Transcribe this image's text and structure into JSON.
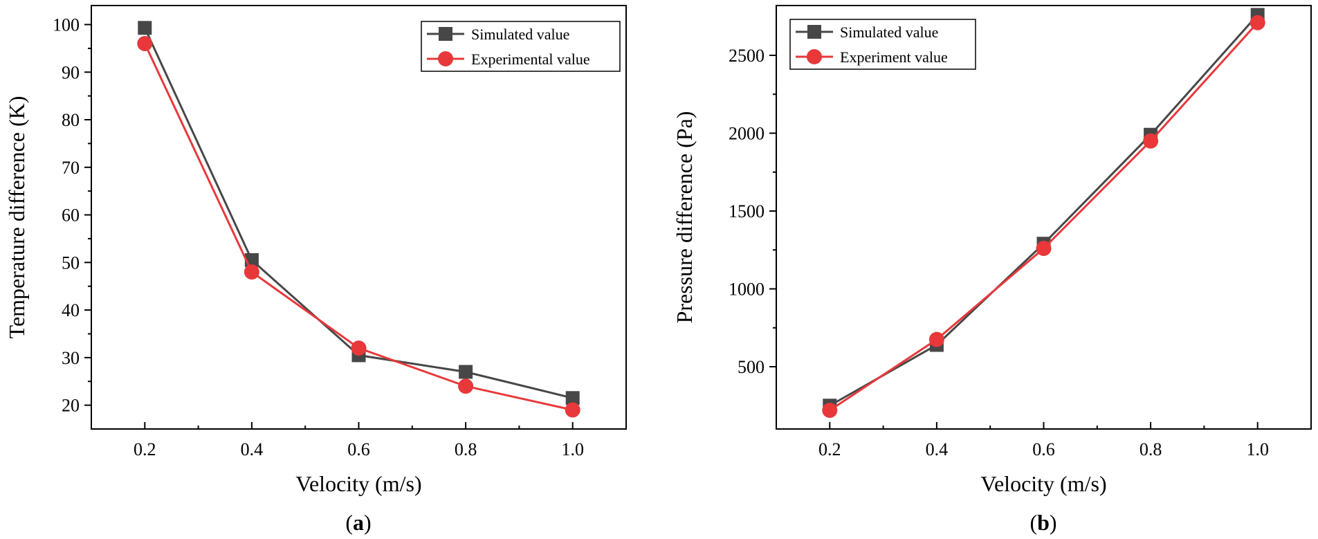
{
  "chart_data": [
    {
      "type": "line",
      "panel_label": "a",
      "xlabel": "Velocity (m/s)",
      "ylabel": "Temperature difference (K)",
      "x": [
        0.2,
        0.4,
        0.6,
        0.8,
        1.0
      ],
      "xlim": [
        0.1,
        1.1
      ],
      "ylim": [
        15,
        104
      ],
      "xticks": [
        0.2,
        0.4,
        0.6,
        0.8,
        1.0
      ],
      "xtick_labels": [
        "0.2",
        "0.4",
        "0.6",
        "0.8",
        "1.0"
      ],
      "yticks": [
        20,
        30,
        40,
        50,
        60,
        70,
        80,
        90,
        100
      ],
      "ytick_labels": [
        "20",
        "30",
        "40",
        "50",
        "60",
        "70",
        "80",
        "90",
        "100"
      ],
      "grid": false,
      "legend_position": "top-right",
      "series": [
        {
          "name": "Simulated value",
          "values": [
            99.3,
            50.5,
            30.5,
            27.0,
            21.5
          ],
          "color": "#474747",
          "marker": "square"
        },
        {
          "name": "Experimental value",
          "values": [
            96.0,
            48.0,
            32.0,
            24.0,
            19.0
          ],
          "color": "#e8383a",
          "marker": "circle"
        }
      ]
    },
    {
      "type": "line",
      "panel_label": "b",
      "xlabel": "Velocity (m/s)",
      "ylabel": "Pressure difference (Pa)",
      "x": [
        0.2,
        0.4,
        0.6,
        0.8,
        1.0
      ],
      "xlim": [
        0.1,
        1.1
      ],
      "ylim": [
        100,
        2820
      ],
      "xticks": [
        0.2,
        0.4,
        0.6,
        0.8,
        1.0
      ],
      "xtick_labels": [
        "0.2",
        "0.4",
        "0.6",
        "0.8",
        "1.0"
      ],
      "yticks": [
        500,
        1000,
        1500,
        2000,
        2500
      ],
      "ytick_labels": [
        "500",
        "1000",
        "1500",
        "2000",
        "2500"
      ],
      "grid": false,
      "legend_position": "top-left",
      "series": [
        {
          "name": "Simulated value",
          "values": [
            250,
            640,
            1290,
            1990,
            2760
          ],
          "color": "#474747",
          "marker": "square"
        },
        {
          "name": "Experiment value",
          "values": [
            220,
            675,
            1260,
            1950,
            2710
          ],
          "color": "#e8383a",
          "marker": "circle"
        }
      ]
    }
  ]
}
